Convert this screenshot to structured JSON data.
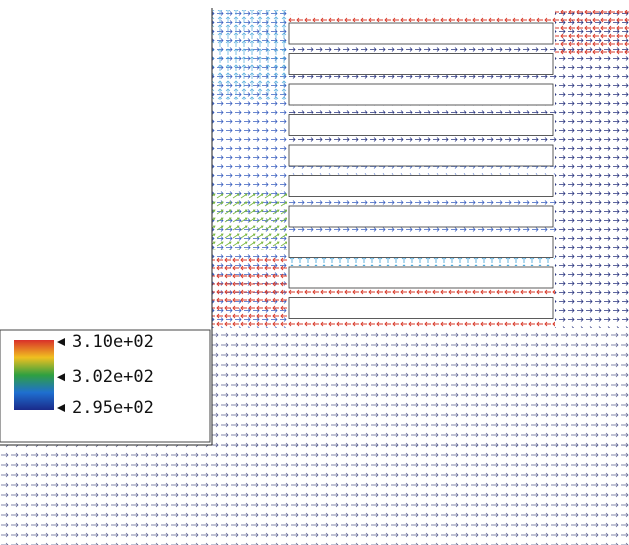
{
  "chart_data": {
    "type": "vector-field",
    "colorbar": {
      "clim": [
        295,
        310
      ],
      "ticks": [
        {
          "value": 310,
          "label": "3.10e+02"
        },
        {
          "value": 302,
          "label": "3.02e+02"
        },
        {
          "value": 295,
          "label": "2.95e+02"
        }
      ],
      "colors": [
        "#d9302a",
        "#f0c020",
        "#2fa040",
        "#1f6fd0",
        "#1a2a8a"
      ]
    }
  }
}
